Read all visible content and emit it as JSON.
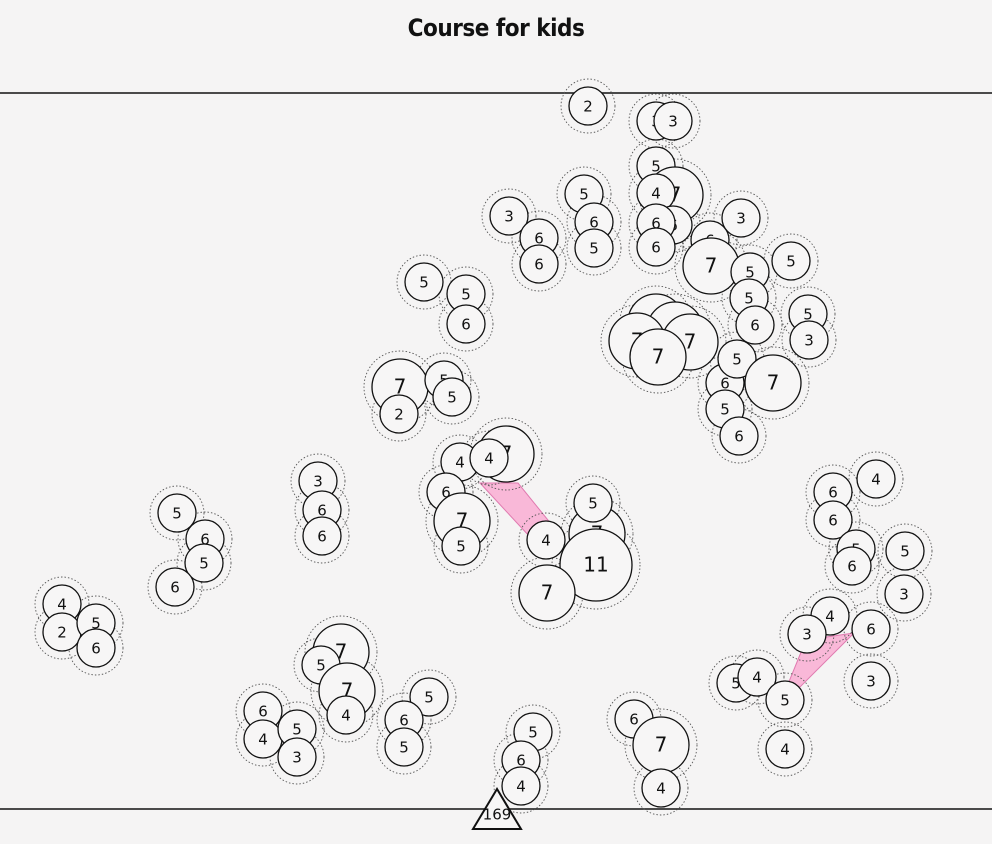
{
  "title": "Course for kids",
  "start_label": "169",
  "colors": {
    "background": "#f5f4f4",
    "control_fill": "#f7f6f6",
    "stroke": "#111111",
    "leg_fill": "#f9b8d8"
  },
  "controls": [
    {
      "v": "2"
    },
    {
      "v": "3"
    },
    {
      "v": "3"
    },
    {
      "v": "5"
    },
    {
      "v": "7"
    },
    {
      "v": "4"
    },
    {
      "v": "6"
    },
    {
      "v": "6"
    },
    {
      "v": "6"
    },
    {
      "v": "6"
    },
    {
      "v": "5"
    },
    {
      "v": "6"
    },
    {
      "v": "5"
    },
    {
      "v": "3"
    },
    {
      "v": "6"
    },
    {
      "v": "6"
    },
    {
      "v": "3"
    },
    {
      "v": "7"
    },
    {
      "v": "5"
    },
    {
      "v": "5"
    },
    {
      "v": "5"
    },
    {
      "v": "6"
    },
    {
      "v": "5"
    },
    {
      "v": "3"
    },
    {
      "v": "7"
    },
    {
      "v": "7"
    },
    {
      "v": "7"
    },
    {
      "v": "7"
    },
    {
      "v": "7"
    },
    {
      "v": "6"
    },
    {
      "v": "5"
    },
    {
      "v": "5"
    },
    {
      "v": "6"
    },
    {
      "v": "7"
    },
    {
      "v": "5"
    },
    {
      "v": "5"
    },
    {
      "v": "6"
    },
    {
      "v": "7"
    },
    {
      "v": "2"
    },
    {
      "v": "5"
    },
    {
      "v": "5"
    },
    {
      "v": "7"
    },
    {
      "v": "4"
    },
    {
      "v": "4"
    },
    {
      "v": "6"
    },
    {
      "v": "7"
    },
    {
      "v": "5"
    },
    {
      "v": "4"
    },
    {
      "v": "7"
    },
    {
      "v": "5"
    },
    {
      "v": "11"
    },
    {
      "v": "7"
    },
    {
      "v": "3"
    },
    {
      "v": "6"
    },
    {
      "v": "6"
    },
    {
      "v": "5"
    },
    {
      "v": "6"
    },
    {
      "v": "5"
    },
    {
      "v": "6"
    },
    {
      "v": "4"
    },
    {
      "v": "2"
    },
    {
      "v": "5"
    },
    {
      "v": "6"
    },
    {
      "v": "7"
    },
    {
      "v": "5"
    },
    {
      "v": "7"
    },
    {
      "v": "4"
    },
    {
      "v": "6"
    },
    {
      "v": "4"
    },
    {
      "v": "5"
    },
    {
      "v": "3"
    },
    {
      "v": "5"
    },
    {
      "v": "6"
    },
    {
      "v": "5"
    },
    {
      "v": "5"
    },
    {
      "v": "6"
    },
    {
      "v": "4"
    },
    {
      "v": "6"
    },
    {
      "v": "7"
    },
    {
      "v": "4"
    },
    {
      "v": "4"
    },
    {
      "v": "6"
    },
    {
      "v": "6"
    },
    {
      "v": "5"
    },
    {
      "v": "6"
    },
    {
      "v": "5"
    },
    {
      "v": "3"
    },
    {
      "v": "4"
    },
    {
      "v": "3"
    },
    {
      "v": "6"
    },
    {
      "v": "3"
    },
    {
      "v": "5"
    },
    {
      "v": "4"
    },
    {
      "v": "5"
    },
    {
      "v": "4"
    }
  ]
}
